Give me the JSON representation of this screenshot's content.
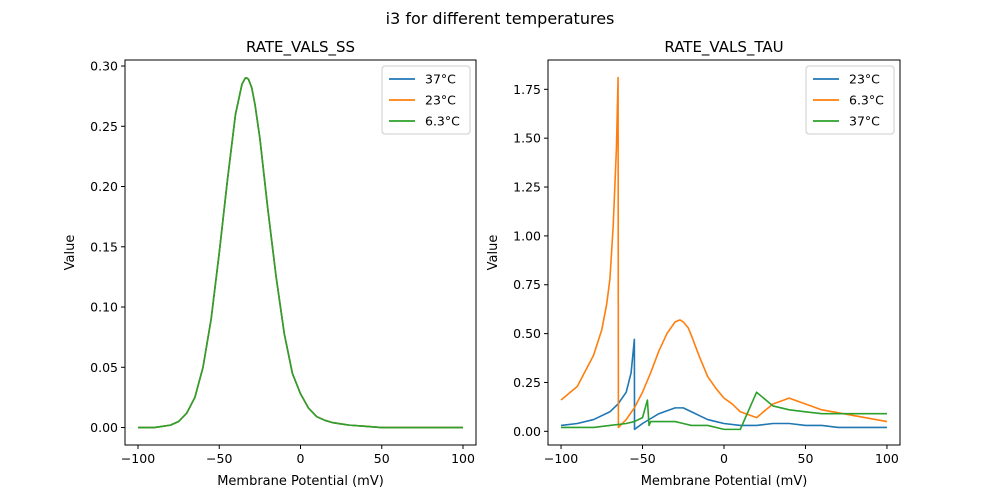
{
  "figure": {
    "suptitle": "i3 for different temperatures"
  },
  "chart_data": [
    {
      "type": "line",
      "title": "RATE_VALS_SS",
      "xlabel": "Membrane Potential (mV)",
      "ylabel": "Value",
      "xlim": [
        -108,
        108
      ],
      "ylim": [
        -0.0145,
        0.305
      ],
      "xticks": [
        -100,
        -50,
        0,
        50,
        100
      ],
      "xtick_labels": [
        "−100",
        "−50",
        "0",
        "50",
        "100"
      ],
      "yticks": [
        0.0,
        0.05,
        0.1,
        0.15,
        0.2,
        0.25,
        0.3
      ],
      "ytick_labels": [
        "0.00",
        "0.05",
        "0.10",
        "0.15",
        "0.20",
        "0.25",
        "0.30"
      ],
      "grid": false,
      "legend": "top-right",
      "series": [
        {
          "name": "37°C",
          "color": "#1f77b4",
          "x": [
            -100,
            -90,
            -80,
            -75,
            -70,
            -65,
            -60,
            -55,
            -50,
            -45,
            -40,
            -36,
            -34,
            -33,
            -32,
            -30,
            -28,
            -25,
            -20,
            -15,
            -10,
            -5,
            0,
            5,
            10,
            15,
            20,
            25,
            30,
            40,
            50,
            60,
            80,
            100
          ],
          "y": [
            0.0,
            0.0,
            0.002,
            0.005,
            0.012,
            0.025,
            0.05,
            0.09,
            0.145,
            0.205,
            0.26,
            0.285,
            0.29,
            0.29,
            0.289,
            0.282,
            0.268,
            0.24,
            0.18,
            0.125,
            0.078,
            0.045,
            0.028,
            0.016,
            0.009,
            0.006,
            0.004,
            0.003,
            0.002,
            0.001,
            0.0,
            0.0,
            0.0,
            0.0
          ]
        },
        {
          "name": "23°C",
          "color": "#ff7f0e",
          "x": [
            -100,
            -90,
            -80,
            -75,
            -70,
            -65,
            -60,
            -55,
            -50,
            -45,
            -40,
            -36,
            -34,
            -33,
            -32,
            -30,
            -28,
            -25,
            -20,
            -15,
            -10,
            -5,
            0,
            5,
            10,
            15,
            20,
            25,
            30,
            40,
            50,
            60,
            80,
            100
          ],
          "y": [
            0.0,
            0.0,
            0.002,
            0.005,
            0.012,
            0.025,
            0.05,
            0.09,
            0.145,
            0.205,
            0.26,
            0.285,
            0.29,
            0.29,
            0.289,
            0.282,
            0.268,
            0.24,
            0.18,
            0.125,
            0.078,
            0.045,
            0.028,
            0.016,
            0.009,
            0.006,
            0.004,
            0.003,
            0.002,
            0.001,
            0.0,
            0.0,
            0.0,
            0.0
          ]
        },
        {
          "name": "6.3°C",
          "color": "#2ca02c",
          "x": [
            -100,
            -90,
            -80,
            -75,
            -70,
            -65,
            -60,
            -55,
            -50,
            -45,
            -40,
            -36,
            -34,
            -33,
            -32,
            -30,
            -28,
            -25,
            -20,
            -15,
            -10,
            -5,
            0,
            5,
            10,
            15,
            20,
            25,
            30,
            40,
            50,
            60,
            80,
            100
          ],
          "y": [
            0.0,
            0.0,
            0.002,
            0.005,
            0.012,
            0.025,
            0.05,
            0.09,
            0.145,
            0.205,
            0.26,
            0.285,
            0.29,
            0.29,
            0.289,
            0.282,
            0.268,
            0.24,
            0.18,
            0.125,
            0.078,
            0.045,
            0.028,
            0.016,
            0.009,
            0.006,
            0.004,
            0.003,
            0.002,
            0.001,
            0.0,
            0.0,
            0.0,
            0.0
          ]
        }
      ]
    },
    {
      "type": "line",
      "title": "RATE_VALS_TAU",
      "xlabel": "Membrane Potential (mV)",
      "ylabel": "Value",
      "xlim": [
        -108,
        108
      ],
      "ylim": [
        -0.07,
        1.9
      ],
      "xticks": [
        -100,
        -50,
        0,
        50,
        100
      ],
      "xtick_labels": [
        "−100",
        "−50",
        "0",
        "50",
        "100"
      ],
      "yticks": [
        0.0,
        0.25,
        0.5,
        0.75,
        1.0,
        1.25,
        1.5,
        1.75
      ],
      "ytick_labels": [
        "0.00",
        "0.25",
        "0.50",
        "0.75",
        "1.00",
        "1.25",
        "1.50",
        "1.75"
      ],
      "grid": false,
      "legend": "top-right",
      "series": [
        {
          "name": "23°C",
          "color": "#1f77b4",
          "x": [
            -100,
            -90,
            -80,
            -70,
            -65,
            -60,
            -57,
            -55,
            -54.9,
            -50,
            -40,
            -30,
            -25,
            -20,
            -15,
            -10,
            -5,
            0,
            10,
            20,
            30,
            40,
            50,
            60,
            70,
            80,
            100
          ],
          "y": [
            0.03,
            0.04,
            0.06,
            0.1,
            0.14,
            0.2,
            0.3,
            0.47,
            0.01,
            0.04,
            0.09,
            0.12,
            0.12,
            0.1,
            0.08,
            0.06,
            0.05,
            0.04,
            0.03,
            0.03,
            0.04,
            0.04,
            0.03,
            0.03,
            0.02,
            0.02,
            0.02
          ]
        },
        {
          "name": "6.3°C",
          "color": "#ff7f0e",
          "x": [
            -100,
            -90,
            -80,
            -75,
            -72,
            -70,
            -68,
            -66,
            -65,
            -64.8,
            -60,
            -55,
            -50,
            -45,
            -40,
            -35,
            -30,
            -27,
            -25,
            -22,
            -20,
            -15,
            -10,
            -5,
            0,
            5,
            10,
            20,
            30,
            40,
            50,
            60,
            80,
            100
          ],
          "y": [
            0.16,
            0.23,
            0.39,
            0.52,
            0.65,
            0.78,
            1.05,
            1.45,
            1.81,
            0.02,
            0.06,
            0.12,
            0.2,
            0.3,
            0.41,
            0.5,
            0.56,
            0.57,
            0.56,
            0.53,
            0.49,
            0.38,
            0.28,
            0.22,
            0.17,
            0.14,
            0.1,
            0.07,
            0.14,
            0.17,
            0.14,
            0.11,
            0.08,
            0.05
          ]
        },
        {
          "name": "37°C",
          "color": "#2ca02c",
          "x": [
            -100,
            -90,
            -80,
            -70,
            -60,
            -55,
            -50,
            -47,
            -46,
            -45,
            -44,
            -40,
            -35,
            -30,
            -25,
            -20,
            -10,
            0,
            10,
            20,
            30,
            40,
            50,
            60,
            80,
            100
          ],
          "y": [
            0.02,
            0.02,
            0.02,
            0.03,
            0.04,
            0.05,
            0.07,
            0.16,
            0.03,
            0.05,
            0.05,
            0.05,
            0.05,
            0.05,
            0.04,
            0.03,
            0.03,
            0.01,
            0.01,
            0.2,
            0.13,
            0.11,
            0.1,
            0.09,
            0.09,
            0.09
          ]
        }
      ]
    }
  ]
}
